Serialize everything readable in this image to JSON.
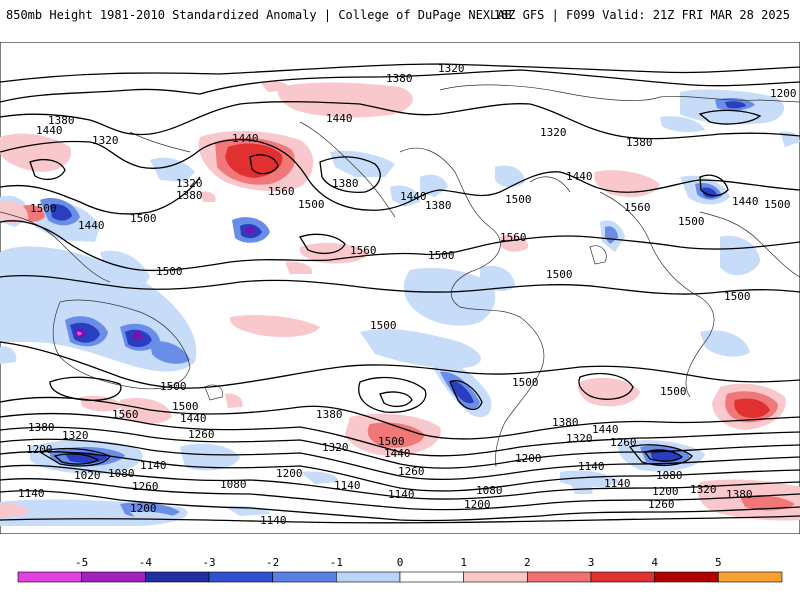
{
  "header": {
    "title": "850mb Height 1981-2010 Standardized Anomaly | College of DuPage NEXLAB",
    "run": "18Z GFS | F099 Valid: 21Z FRI MAR 28 2025"
  },
  "contour_labels": {
    "c1020": "1020",
    "c1080": "1080",
    "c1140": "1140",
    "c1200": "1200",
    "c1260": "1260",
    "c1320": "1320",
    "c1380": "1380",
    "c1440": "1440",
    "c1500": "1500",
    "c1560": "1560"
  },
  "colorbar": {
    "ticks": [
      "-5",
      "-4",
      "-3",
      "-2",
      "-1",
      "0",
      "1",
      "2",
      "3",
      "4",
      "5"
    ],
    "colors": [
      "#e040e0",
      "#a020c0",
      "#2030a0",
      "#3050d0",
      "#5a80e8",
      "#b8d4f8",
      "#ffffff",
      "#f8c8c8",
      "#f07070",
      "#e03030",
      "#b00000",
      "#f8a030"
    ]
  },
  "palette": {
    "neg1": "#c6dcf8",
    "neg2": "#6a8ee8",
    "neg3": "#2a3ec0",
    "neg4": "#7a10b0",
    "neg5": "#e050d8",
    "pos1": "#f8c8cc",
    "pos2": "#f07878",
    "pos3": "#e03030"
  }
}
